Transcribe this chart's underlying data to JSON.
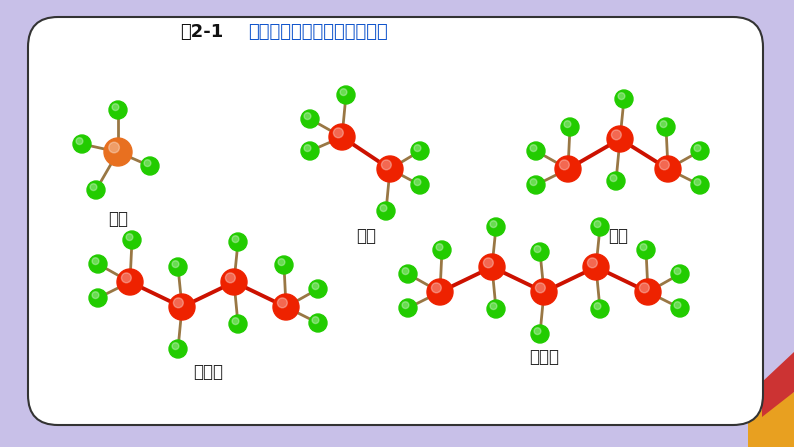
{
  "title_bold": "图2-1",
  "title_normal": "几种简单烷烃的分子结构模型",
  "bg_color": "#c8c0e8",
  "card_color": "#ffffff",
  "card_edge_color": "#333333",
  "carbon_color": "#ee2200",
  "carbon_color_methane": "#e87020",
  "hydrogen_color": "#22cc00",
  "bond_color": "#cc1100",
  "bond_color_h": "#997744",
  "labels": [
    "甲烷",
    "乙烷",
    "丙烷",
    "正丁烷",
    "正戊烷"
  ],
  "label_color": "#222222",
  "title_color_bold": "#111111",
  "title_color_normal": "#1155cc",
  "pencil_gold": "#e8a020",
  "pencil_red": "#cc3333"
}
